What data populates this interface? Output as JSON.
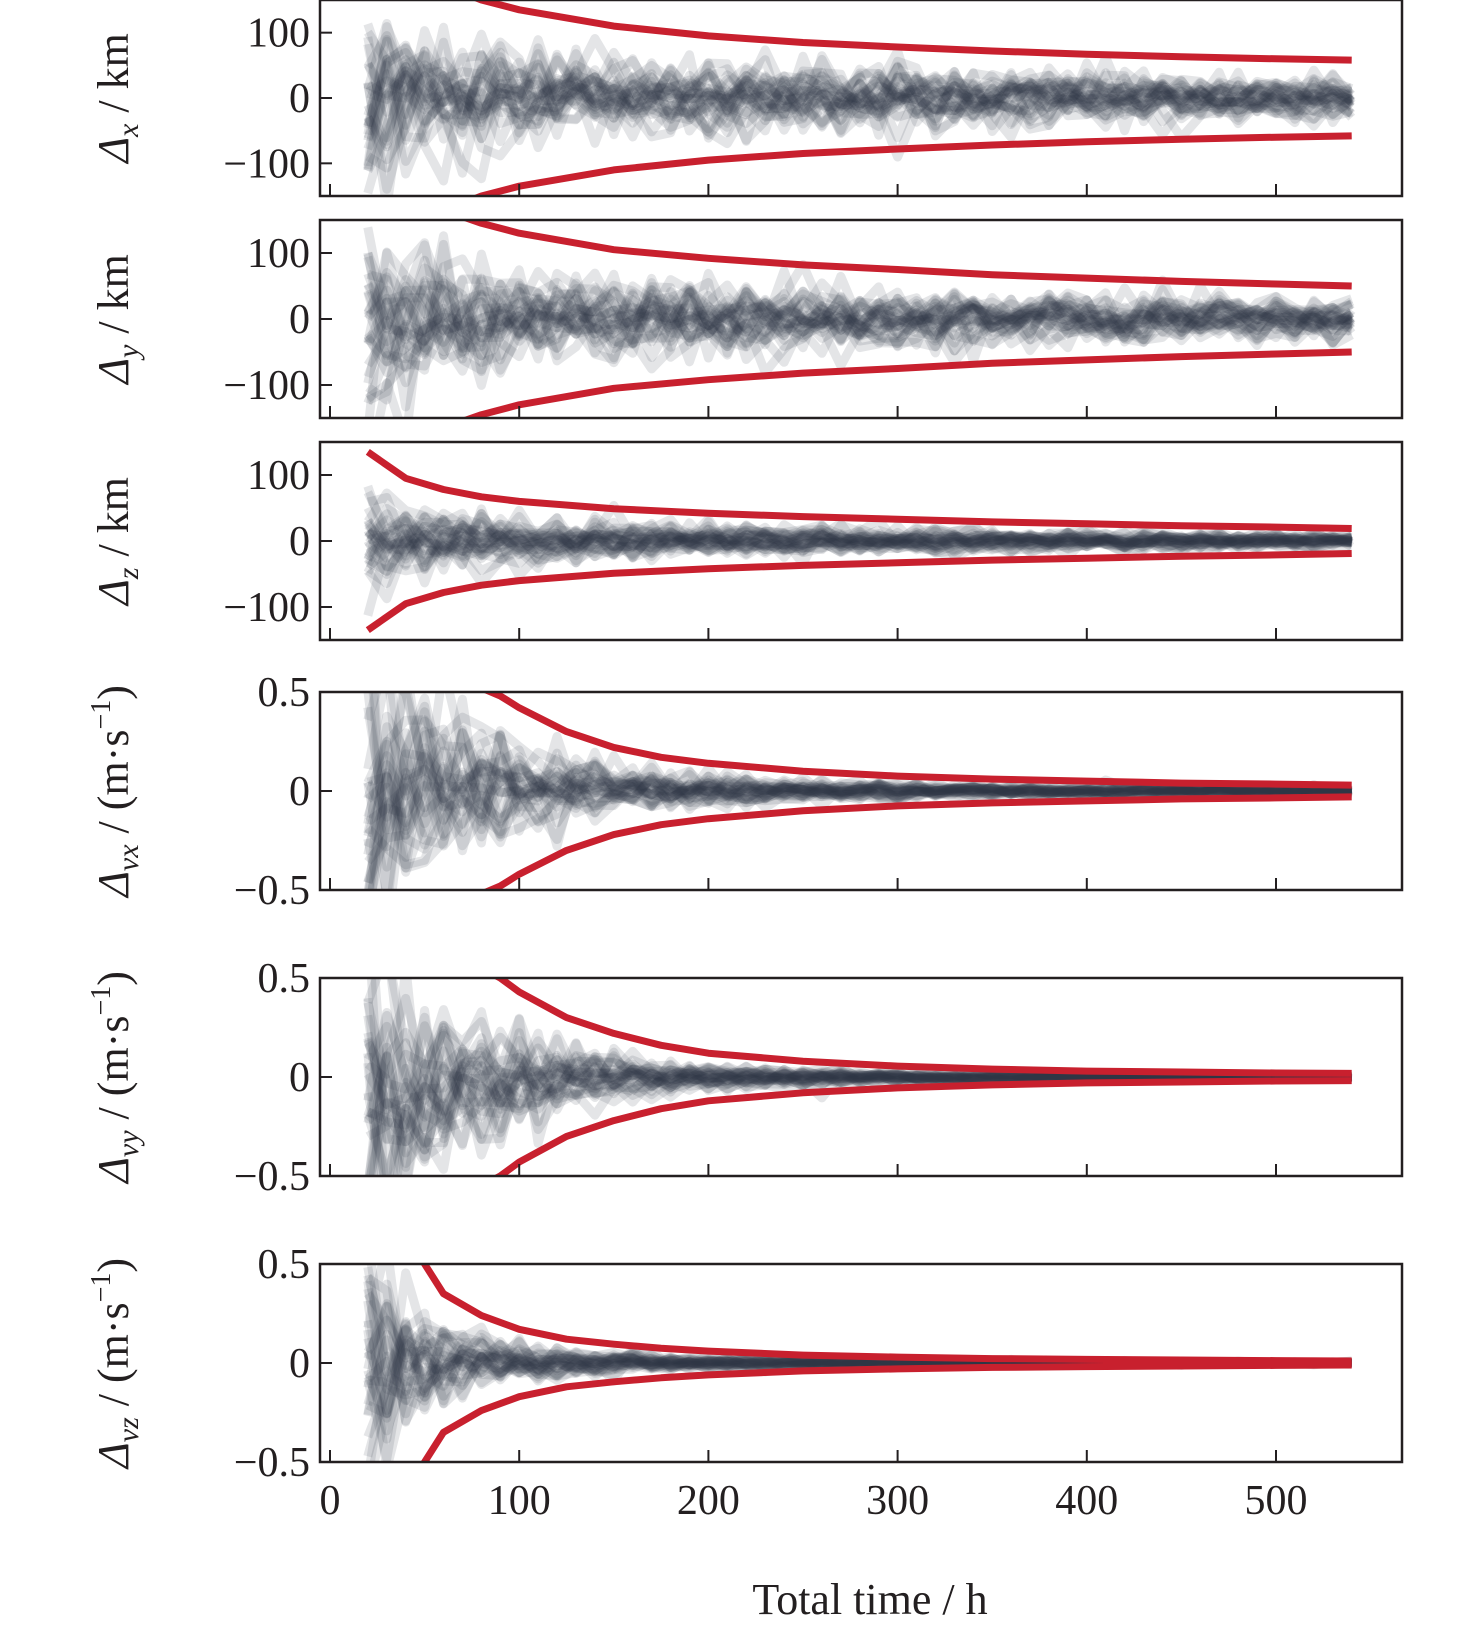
{
  "chart_data": [
    {
      "type": "line",
      "panel": "dx",
      "ylabel": "Δx / km",
      "ylabel_main": "Δ",
      "ylabel_sub": "x",
      "ylabel_unit": " / km",
      "ylim": [
        -150,
        150
      ],
      "yticks": [
        -100,
        0,
        100
      ],
      "ytick_labels": [
        "−100",
        "0",
        "100"
      ],
      "xlim": [
        -5,
        565
      ],
      "xticks": [
        0,
        100,
        200,
        300,
        400,
        500
      ],
      "bound_x": [
        20,
        40,
        60,
        80,
        100,
        150,
        200,
        250,
        300,
        350,
        400,
        450,
        500,
        540
      ],
      "bound_upper": [
        300,
        212,
        173,
        150,
        135,
        110,
        95,
        85,
        78,
        72,
        67,
        63,
        60,
        58
      ],
      "bound_lower": [
        -300,
        -212,
        -173,
        -150,
        -135,
        -110,
        -95,
        -85,
        -78,
        -72,
        -67,
        -63,
        -60,
        -58
      ],
      "grey_traces": {
        "count": 30,
        "x_start": 20,
        "x_end": 540,
        "note": "semi-transparent scattered error realizations centred on 0"
      }
    },
    {
      "type": "line",
      "panel": "dy",
      "ylabel": "Δy / km",
      "ylabel_main": "Δ",
      "ylabel_sub": "y",
      "ylabel_unit": " / km",
      "ylim": [
        -150,
        150
      ],
      "yticks": [
        -100,
        0,
        100
      ],
      "ytick_labels": [
        "−100",
        "0",
        "100"
      ],
      "xlim": [
        -5,
        565
      ],
      "xticks": [
        0,
        100,
        200,
        300,
        400,
        500
      ],
      "bound_x": [
        20,
        40,
        60,
        80,
        100,
        150,
        200,
        250,
        300,
        350,
        400,
        450,
        500,
        540
      ],
      "bound_upper": [
        290,
        205,
        165,
        145,
        130,
        105,
        92,
        82,
        75,
        67,
        62,
        57,
        53,
        50
      ],
      "bound_lower": [
        -290,
        -205,
        -165,
        -145,
        -130,
        -105,
        -92,
        -82,
        -75,
        -67,
        -62,
        -57,
        -53,
        -50
      ],
      "grey_traces": {
        "count": 30,
        "x_start": 20,
        "x_end": 540
      }
    },
    {
      "type": "line",
      "panel": "dz",
      "ylabel": "Δz / km",
      "ylabel_main": "Δ",
      "ylabel_sub": "z",
      "ylabel_unit": " / km",
      "ylim": [
        -150,
        150
      ],
      "yticks": [
        -100,
        0,
        100
      ],
      "ytick_labels": [
        "−100",
        "0",
        "100"
      ],
      "xlim": [
        -5,
        565
      ],
      "xticks": [
        0,
        100,
        200,
        300,
        400,
        500
      ],
      "bound_x": [
        20,
        40,
        60,
        80,
        100,
        150,
        200,
        250,
        300,
        350,
        400,
        450,
        500,
        540
      ],
      "bound_upper": [
        135,
        95,
        78,
        67,
        60,
        49,
        42,
        37,
        33,
        29,
        26,
        23,
        21,
        19
      ],
      "bound_lower": [
        -135,
        -95,
        -78,
        -67,
        -60,
        -49,
        -42,
        -37,
        -33,
        -29,
        -26,
        -23,
        -21,
        -19
      ],
      "grey_traces": {
        "count": 30,
        "x_start": 20,
        "x_end": 540
      }
    },
    {
      "type": "line",
      "panel": "dvx",
      "ylabel": "Δvx / (m·s−1)",
      "ylabel_main": "Δ",
      "ylabel_sub": "vx",
      "ylabel_unit": " / (m·s",
      "ylabel_sup": "−1",
      "ylabel_close": ")",
      "ylim": [
        -0.5,
        0.5
      ],
      "yticks": [
        -0.5,
        0,
        0.5
      ],
      "ytick_labels": [
        "−0.5",
        "0",
        "0.5"
      ],
      "xlim": [
        -5,
        565
      ],
      "xticks": [
        0,
        100,
        200,
        300,
        400,
        500
      ],
      "bound_x": [
        20,
        40,
        60,
        80,
        90,
        100,
        125,
        150,
        175,
        200,
        250,
        300,
        350,
        400,
        450,
        500,
        540
      ],
      "bound_upper": [
        1.6,
        0.9,
        0.65,
        0.52,
        0.48,
        0.42,
        0.3,
        0.22,
        0.17,
        0.14,
        0.1,
        0.075,
        0.06,
        0.05,
        0.04,
        0.035,
        0.03
      ],
      "bound_lower": [
        -1.6,
        -0.9,
        -0.65,
        -0.52,
        -0.48,
        -0.42,
        -0.3,
        -0.22,
        -0.17,
        -0.14,
        -0.1,
        -0.075,
        -0.06,
        -0.05,
        -0.04,
        -0.035,
        -0.03
      ],
      "grey_traces": {
        "count": 30,
        "x_start": 20,
        "x_end": 540
      }
    },
    {
      "type": "line",
      "panel": "dvy",
      "ylabel": "Δvy / (m·s−1)",
      "ylabel_main": "Δ",
      "ylabel_sub": "vy",
      "ylabel_unit": " / (m·s",
      "ylabel_sup": "−1",
      "ylabel_close": ")",
      "ylim": [
        -0.5,
        0.5
      ],
      "yticks": [
        -0.5,
        0,
        0.5
      ],
      "ytick_labels": [
        "−0.5",
        "0",
        "0.5"
      ],
      "xlim": [
        -5,
        565
      ],
      "xticks": [
        0,
        100,
        200,
        300,
        400,
        500
      ],
      "bound_x": [
        20,
        40,
        60,
        80,
        90,
        100,
        125,
        150,
        175,
        200,
        250,
        300,
        350,
        400,
        450,
        500,
        540
      ],
      "bound_upper": [
        1.6,
        0.95,
        0.7,
        0.55,
        0.5,
        0.43,
        0.3,
        0.22,
        0.16,
        0.12,
        0.08,
        0.055,
        0.04,
        0.03,
        0.025,
        0.02,
        0.018
      ],
      "bound_lower": [
        -1.6,
        -0.95,
        -0.7,
        -0.55,
        -0.5,
        -0.43,
        -0.3,
        -0.22,
        -0.16,
        -0.12,
        -0.08,
        -0.055,
        -0.04,
        -0.03,
        -0.025,
        -0.02,
        -0.018
      ],
      "grey_traces": {
        "count": 30,
        "x_start": 20,
        "x_end": 540
      }
    },
    {
      "type": "line",
      "panel": "dvz",
      "ylabel": "Δvz / (m·s−1)",
      "ylabel_main": "Δ",
      "ylabel_sub": "vz",
      "ylabel_unit": " / (m·s",
      "ylabel_sup": "−1",
      "ylabel_close": ")",
      "xlabel": "Total time / h",
      "ylim": [
        -0.5,
        0.5
      ],
      "yticks": [
        -0.5,
        0,
        0.5
      ],
      "ytick_labels": [
        "−0.5",
        "0",
        "0.5"
      ],
      "xlim": [
        -5,
        565
      ],
      "xticks": [
        0,
        100,
        200,
        300,
        400,
        500
      ],
      "xtick_labels": [
        "0",
        "100",
        "200",
        "300",
        "400",
        "500"
      ],
      "bound_x": [
        20,
        40,
        50,
        60,
        80,
        100,
        125,
        150,
        175,
        200,
        250,
        300,
        350,
        400,
        450,
        500,
        540
      ],
      "bound_upper": [
        1.3,
        0.68,
        0.5,
        0.35,
        0.24,
        0.17,
        0.12,
        0.095,
        0.075,
        0.06,
        0.04,
        0.03,
        0.022,
        0.018,
        0.015,
        0.012,
        0.01
      ],
      "bound_lower": [
        -1.3,
        -0.68,
        -0.5,
        -0.35,
        -0.24,
        -0.17,
        -0.12,
        -0.095,
        -0.075,
        -0.06,
        -0.04,
        -0.03,
        -0.022,
        -0.018,
        -0.015,
        -0.012,
        -0.01
      ],
      "grey_traces": {
        "count": 30,
        "x_start": 20,
        "x_end": 540
      }
    }
  ],
  "colors": {
    "bound": "#c8202e",
    "trace": "#2b3445",
    "axis": "#231f20"
  }
}
